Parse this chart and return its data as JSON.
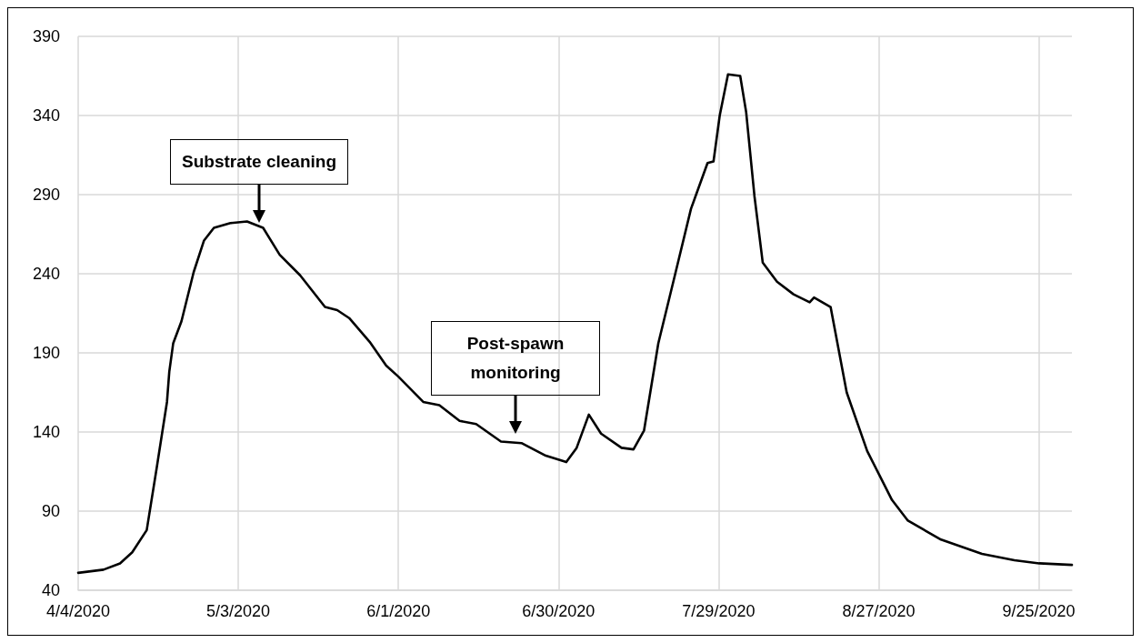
{
  "chart_data": {
    "type": "line",
    "x": [
      "2020-04-04",
      "2020-04-08T14:00",
      "2020-04-11T14:00",
      "2020-04-13T19:00",
      "2020-04-16T10:00",
      "2020-04-18T05:00",
      "2020-04-20T02:00",
      "2020-04-20T12:00",
      "2020-04-21T05:00",
      "2020-04-22T17:00",
      "2020-04-24T22:00",
      "2020-04-26T19:00",
      "2020-04-28T14:00",
      "2020-05-01T14:00",
      "2020-05-04T14:00",
      "2020-05-07T12:00",
      "2020-05-10T12:00",
      "2020-05-14T05:00",
      "2020-05-18T17:00",
      "2020-05-20T22:00",
      "2020-05-23T02:00",
      "2020-05-26T19:00",
      "2020-05-29T19:00",
      "2020-06-01",
      "2020-06-05T12:00",
      "2020-06-08T10:00",
      "2020-06-12T02:00",
      "2020-06-15T02:00",
      "2020-06-19T14:00",
      "2020-06-23T07:00",
      "2020-06-27T17:00",
      "2020-07-01T10:00",
      "2020-07-03T07:00",
      "2020-07-05T12:00",
      "2020-07-07T17:00",
      "2020-07-11T10:00",
      "2020-07-13T14:00",
      "2020-07-15T12:00",
      "2020-07-18T02:00",
      "2020-07-21T02:00",
      "2020-07-24",
      "2020-07-27",
      "2020-07-28T02:00",
      "2020-07-29T05:00",
      "2020-07-30T17:00",
      "2020-08-01T22:00",
      "2020-08-03",
      "2020-08-04T12:00",
      "2020-08-06",
      "2020-08-08T14:00",
      "2020-08-11T14:00",
      "2020-08-14T12:00",
      "2020-08-15T07:00",
      "2020-08-18T07:00",
      "2020-08-21T05:00",
      "2020-08-24T22:00",
      "2020-08-29T10:00",
      "2020-09-01T07:00",
      "2020-09-07T07:00",
      "2020-09-14T17:00",
      "2020-09-20T14:00",
      "2020-09-25T02:00",
      "2020-10-01"
    ],
    "series": [
      {
        "color": "#000000",
        "values": [
          51,
          53,
          57,
          64,
          78,
          117,
          159,
          178,
          196,
          210,
          241,
          261,
          269,
          272,
          273,
          269,
          252,
          239,
          219,
          217,
          212,
          197,
          182,
          175,
          159,
          157,
          147,
          145,
          134,
          133,
          125,
          121,
          130,
          151,
          139,
          130,
          129,
          141,
          196,
          239,
          281,
          310,
          311,
          340,
          366,
          365,
          342,
          289,
          247,
          235,
          227,
          222,
          225,
          219,
          165,
          128,
          97,
          84,
          72,
          63,
          59,
          57,
          56
        ]
      }
    ],
    "xlim": [
      "2020-04-04",
      "2020-10-01"
    ],
    "xticks": [
      {
        "value": "2020-04-04",
        "label": "4/4/2020"
      },
      {
        "value": "2020-05-03",
        "label": "5/3/2020"
      },
      {
        "value": "2020-06-01",
        "label": "6/1/2020"
      },
      {
        "value": "2020-06-30",
        "label": "6/30/2020"
      },
      {
        "value": "2020-07-29",
        "label": "7/29/2020"
      },
      {
        "value": "2020-08-27",
        "label": "8/27/2020"
      },
      {
        "value": "2020-09-25",
        "label": "9/25/2020"
      }
    ],
    "ylim": [
      40,
      390
    ],
    "yticks": [
      40,
      90,
      140,
      190,
      240,
      290,
      340,
      390
    ],
    "grid": true,
    "marker": "none",
    "line_style": "solid",
    "annotations": [
      "Substrate cleaning",
      "Post-spawn monitoring"
    ]
  }
}
